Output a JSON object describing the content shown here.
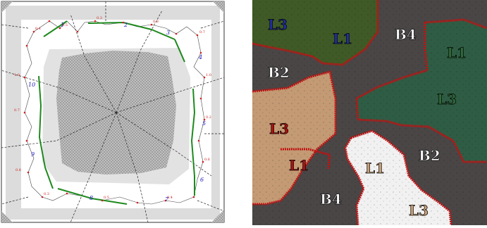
{
  "left_diagram": {
    "node_numbers": [
      "1",
      "2",
      "3",
      "4",
      "5",
      "6",
      "7",
      "8",
      "9",
      "10"
    ],
    "point_labels": [
      "0.4",
      "0.5",
      "0.3",
      "0.8",
      "0.7",
      "1.0",
      "0.2",
      "0.6"
    ]
  },
  "right_map": {
    "region_labels": [
      {
        "text": "L3",
        "color": "#2030a0"
      },
      {
        "text": "L1",
        "color": "#2030a0"
      },
      {
        "text": "B4",
        "color": "#ffffff"
      },
      {
        "text": "L1",
        "color": "#2f6b38"
      },
      {
        "text": "B2",
        "color": "#ffffff"
      },
      {
        "text": "L3",
        "color": "#2f6b38"
      },
      {
        "text": "L3",
        "color": "#b01010"
      },
      {
        "text": "L1",
        "color": "#b01010"
      },
      {
        "text": "L1",
        "color": "#c8a078"
      },
      {
        "text": "B2",
        "color": "#ffffff"
      },
      {
        "text": "B4",
        "color": "#ffffff"
      },
      {
        "text": "L3",
        "color": "#c8a078"
      }
    ]
  }
}
